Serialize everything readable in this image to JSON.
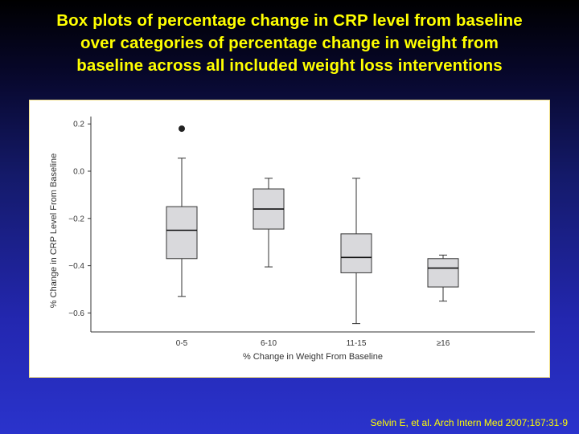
{
  "title_lines": [
    "Box plots of percentage change in CRP level from baseline",
    "over categories of percentage change in weight from",
    "baseline across all included weight loss interventions"
  ],
  "citation": "Selvin E, et al. Arch Intern Med 2007;167:31-9",
  "colors": {
    "title": "#ffff00",
    "box_fill": "#d9d9dc",
    "box_stroke": "#333333"
  },
  "chart_data": {
    "type": "boxplot",
    "xlabel": "% Change in Weight From Baseline",
    "ylabel": "% Change in CRP Level From Baseline",
    "yticks": [
      "0.2",
      "0.0",
      "−0.2",
      "−0.4",
      "−0.6"
    ],
    "ytick_values": [
      0.2,
      0.0,
      -0.2,
      -0.4,
      -0.6
    ],
    "ylim": [
      -0.68,
      0.22
    ],
    "grid": false,
    "categories": [
      "0-5",
      "6-10",
      "11-15",
      "≥16"
    ],
    "boxes": [
      {
        "category": "0-5",
        "whisker_low": -0.53,
        "q1": -0.37,
        "median": -0.25,
        "q3": -0.15,
        "whisker_high": 0.055,
        "outliers": [
          0.18
        ]
      },
      {
        "category": "6-10",
        "whisker_low": -0.405,
        "q1": -0.245,
        "median": -0.16,
        "q3": -0.075,
        "whisker_high": -0.03,
        "outliers": []
      },
      {
        "category": "11-15",
        "whisker_low": -0.645,
        "q1": -0.43,
        "median": -0.365,
        "q3": -0.265,
        "whisker_high": -0.03,
        "outliers": []
      },
      {
        "category": "≥16",
        "whisker_low": -0.55,
        "q1": -0.49,
        "median": -0.41,
        "q3": -0.37,
        "whisker_high": -0.355,
        "outliers": []
      }
    ]
  }
}
